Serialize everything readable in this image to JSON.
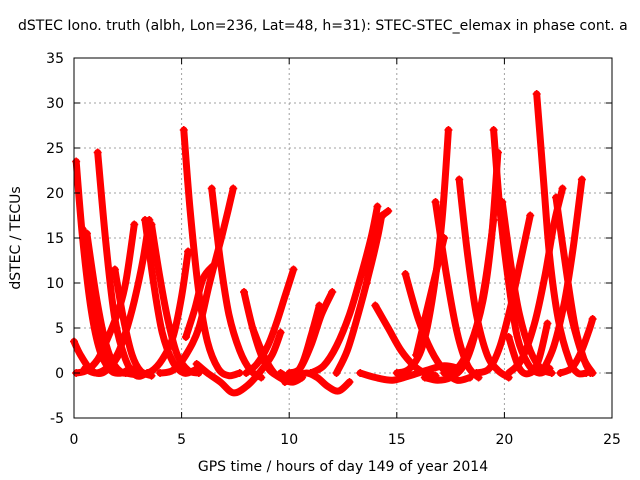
{
  "chart_data": {
    "type": "scatter",
    "title": "dSTEC Iono. truth (albh, Lon=236, Lat=48, h=31): STEC-STEC_elemax in phase cont. a",
    "xlabel": "GPS time / hours of day 149 of year 2014",
    "ylabel": "dSTEC  / TECUs",
    "xlim": [
      0,
      25
    ],
    "ylim": [
      -5,
      35
    ],
    "xticks": [
      0,
      5,
      10,
      15,
      20,
      25
    ],
    "yticks": [
      -5,
      0,
      5,
      10,
      15,
      20,
      25,
      30,
      35
    ],
    "grid": true,
    "marker": "plus",
    "color": "#ff0000",
    "series": [
      {
        "x": [
          0.0,
          0.3,
          0.8,
          1.3,
          1.8,
          2.2
        ],
        "y": [
          3.5,
          2.0,
          0.3,
          0.0,
          1.0,
          2.5
        ]
      },
      {
        "x": [
          0.1,
          0.4,
          0.8,
          1.2,
          1.7,
          2.2,
          2.6
        ],
        "y": [
          23.5,
          15.0,
          7.0,
          2.5,
          0.3,
          0.0,
          0.5
        ]
      },
      {
        "x": [
          0.1,
          0.6,
          1.1,
          1.5,
          2.0,
          2.4,
          2.8
        ],
        "y": [
          0.0,
          0.3,
          1.5,
          3.5,
          6.5,
          10.0,
          16.5
        ]
      },
      {
        "x": [
          0.4,
          0.8,
          1.2,
          1.6,
          2.1,
          2.5
        ],
        "y": [
          16.0,
          8.0,
          3.0,
          0.8,
          0.0,
          0.3
        ]
      },
      {
        "x": [
          0.6,
          1.0,
          1.4,
          1.8,
          2.3,
          2.8
        ],
        "y": [
          15.5,
          9.0,
          4.0,
          1.2,
          0.0,
          0.5
        ]
      },
      {
        "x": [
          1.1,
          1.5,
          1.9,
          2.4,
          2.9,
          3.4
        ],
        "y": [
          24.5,
          14.0,
          6.0,
          1.5,
          -0.3,
          0.0
        ]
      },
      {
        "x": [
          0.5,
          1.0,
          1.5,
          2.0,
          2.4,
          2.8,
          3.2,
          3.5
        ],
        "y": [
          0.5,
          0.0,
          0.5,
          2.0,
          4.5,
          8.0,
          12.5,
          17.0
        ]
      },
      {
        "x": [
          1.9,
          2.3,
          2.7,
          3.1,
          3.6
        ],
        "y": [
          11.5,
          6.0,
          2.0,
          0.2,
          -0.3
        ]
      },
      {
        "x": [
          3.3,
          3.7,
          4.1,
          4.6,
          5.1,
          5.6
        ],
        "y": [
          17.0,
          10.0,
          4.5,
          1.2,
          0.0,
          0.3
        ]
      },
      {
        "x": [
          3.6,
          4.0,
          4.4,
          4.8,
          5.3,
          5.8
        ],
        "y": [
          16.5,
          10.5,
          5.5,
          2.0,
          0.3,
          0.0
        ]
      },
      {
        "x": [
          2.4,
          3.0,
          3.6,
          4.1,
          4.6,
          5.0,
          5.3
        ],
        "y": [
          0.0,
          -0.2,
          0.2,
          1.5,
          4.0,
          8.5,
          13.5
        ]
      },
      {
        "x": [
          5.1,
          5.4,
          5.8,
          6.2,
          6.7,
          7.2,
          7.7
        ],
        "y": [
          27.0,
          18.0,
          9.0,
          3.5,
          0.5,
          -0.3,
          0.0
        ]
      },
      {
        "x": [
          4.0,
          4.6,
          5.2,
          5.8,
          6.3,
          6.9,
          7.4
        ],
        "y": [
          0.0,
          0.3,
          2.0,
          5.0,
          10.0,
          15.5,
          20.5
        ]
      },
      {
        "x": [
          5.2,
          5.6,
          6.0,
          6.5
        ],
        "y": [
          4.0,
          7.0,
          10.5,
          12.0
        ]
      },
      {
        "x": [
          6.4,
          6.8,
          7.2,
          7.7,
          8.2,
          8.7
        ],
        "y": [
          20.5,
          12.5,
          6.5,
          2.5,
          0.3,
          -0.5
        ]
      },
      {
        "x": [
          5.7,
          6.2,
          6.8,
          7.4,
          8.0,
          8.6,
          9.2,
          9.6
        ],
        "y": [
          1.0,
          0.0,
          -1.0,
          -2.2,
          -1.5,
          0.0,
          2.0,
          4.5
        ]
      },
      {
        "x": [
          7.9,
          8.3,
          8.7,
          9.1,
          9.6,
          10.0
        ],
        "y": [
          9.0,
          5.0,
          2.0,
          0.3,
          -0.5,
          -0.8
        ]
      },
      {
        "x": [
          8.3,
          8.8,
          9.3,
          9.8,
          10.2,
          10.6
        ],
        "y": [
          5.0,
          2.0,
          0.0,
          -0.8,
          -1.0,
          -0.5
        ]
      },
      {
        "x": [
          8.0,
          8.5,
          9.0,
          9.4,
          9.8,
          10.2
        ],
        "y": [
          0.0,
          1.0,
          3.0,
          5.5,
          8.5,
          11.5
        ]
      },
      {
        "x": [
          9.6,
          10.1,
          10.6,
          11.0,
          11.4
        ],
        "y": [
          0.0,
          -0.5,
          1.0,
          4.0,
          7.5
        ]
      },
      {
        "x": [
          10.0,
          10.5,
          11.0,
          11.5,
          12.0
        ],
        "y": [
          0.0,
          0.5,
          3.0,
          6.5,
          9.0
        ]
      },
      {
        "x": [
          9.8,
          10.3,
          10.8,
          11.3,
          11.8,
          12.3,
          12.8
        ],
        "y": [
          -1.0,
          -0.5,
          0.0,
          -0.5,
          -1.5,
          -2.0,
          -1.0
        ]
      },
      {
        "x": [
          11.0,
          11.6,
          12.2,
          12.8,
          13.3,
          13.8,
          14.1
        ],
        "y": [
          0.0,
          0.8,
          3.0,
          6.5,
          10.5,
          15.0,
          18.5
        ]
      },
      {
        "x": [
          12.2,
          12.7,
          13.2,
          13.7,
          14.1,
          14.3
        ],
        "y": [
          0.0,
          2.5,
          6.5,
          11.0,
          15.0,
          17.5
        ]
      },
      {
        "x": [
          13.6,
          13.9,
          14.2,
          14.6
        ],
        "y": [
          10.0,
          14.0,
          17.0,
          18.0
        ]
      },
      {
        "x": [
          13.3,
          14.0,
          14.8,
          15.6,
          16.4,
          17.2,
          17.9
        ],
        "y": [
          0.0,
          -0.5,
          -0.8,
          -0.3,
          0.3,
          0.8,
          0.5
        ]
      },
      {
        "x": [
          14.0,
          14.6,
          15.2,
          15.8,
          16.3,
          16.8
        ],
        "y": [
          7.5,
          5.0,
          2.5,
          0.8,
          0.0,
          -0.3
        ]
      },
      {
        "x": [
          15.4,
          16.0,
          16.6,
          17.2,
          17.8,
          18.4
        ],
        "y": [
          11.0,
          6.0,
          2.5,
          0.3,
          -0.8,
          -0.5
        ]
      },
      {
        "x": [
          15.9,
          16.3,
          16.7,
          17.2
        ],
        "y": [
          2.0,
          6.0,
          10.0,
          15.0
        ]
      },
      {
        "x": [
          15.0,
          15.6,
          16.2,
          16.7,
          17.1,
          17.4
        ],
        "y": [
          0.0,
          0.5,
          3.0,
          9.0,
          17.0,
          27.0
        ]
      },
      {
        "x": [
          16.8,
          17.3,
          17.8,
          18.3,
          18.8
        ],
        "y": [
          19.0,
          11.0,
          4.5,
          0.8,
          -0.5
        ]
      },
      {
        "x": [
          17.9,
          18.3,
          18.7,
          19.2,
          19.7,
          20.2
        ],
        "y": [
          21.5,
          13.0,
          6.5,
          2.0,
          0.3,
          -0.5
        ]
      },
      {
        "x": [
          16.3,
          16.9,
          17.5,
          18.1,
          18.6,
          19.1,
          19.5
        ],
        "y": [
          -0.5,
          -0.8,
          -0.5,
          0.8,
          4.0,
          10.0,
          17.0
        ]
      },
      {
        "x": [
          17.2,
          17.8,
          18.4,
          19.0,
          19.4,
          19.7
        ],
        "y": [
          0.0,
          0.5,
          3.0,
          8.0,
          15.0,
          24.5
        ]
      },
      {
        "x": [
          19.5,
          19.8,
          20.2,
          20.6,
          21.1,
          21.6,
          22.1
        ],
        "y": [
          27.0,
          18.0,
          10.0,
          4.0,
          1.0,
          0.0,
          0.5
        ]
      },
      {
        "x": [
          19.9,
          20.3,
          20.7,
          21.2,
          21.7,
          22.2
        ],
        "y": [
          19.0,
          12.0,
          6.5,
          2.5,
          0.5,
          0.0
        ]
      },
      {
        "x": [
          18.7,
          19.3,
          19.8,
          20.3,
          20.8,
          21.2
        ],
        "y": [
          0.0,
          0.5,
          3.0,
          7.5,
          13.0,
          17.5
        ]
      },
      {
        "x": [
          20.2,
          20.7,
          21.2,
          21.6,
          22.0
        ],
        "y": [
          4.0,
          0.5,
          0.0,
          1.5,
          5.5
        ]
      },
      {
        "x": [
          21.5,
          21.8,
          22.1,
          22.5,
          23.0,
          23.4,
          23.8
        ],
        "y": [
          31.0,
          22.0,
          13.0,
          6.0,
          1.5,
          0.0,
          0.0
        ]
      },
      {
        "x": [
          20.2,
          20.8,
          21.4,
          21.9,
          22.3,
          22.7
        ],
        "y": [
          0.0,
          1.5,
          5.5,
          11.0,
          16.5,
          20.5
        ]
      },
      {
        "x": [
          21.8,
          22.3,
          22.8,
          23.2,
          23.6
        ],
        "y": [
          0.3,
          3.0,
          8.0,
          14.0,
          21.5
        ]
      },
      {
        "x": [
          22.4,
          22.9,
          23.3,
          23.7,
          24.0
        ],
        "y": [
          19.5,
          11.0,
          5.0,
          1.5,
          0.0
        ]
      },
      {
        "x": [
          22.9,
          23.3,
          23.7,
          24.1
        ],
        "y": [
          8.5,
          4.5,
          1.5,
          0.0
        ]
      },
      {
        "x": [
          22.6,
          23.1,
          23.5,
          23.9,
          24.1
        ],
        "y": [
          0.0,
          0.5,
          2.0,
          4.5,
          6.0
        ]
      }
    ]
  }
}
